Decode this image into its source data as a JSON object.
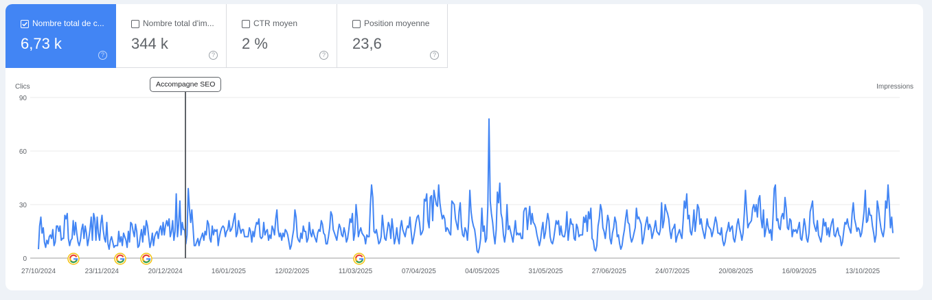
{
  "metrics": [
    {
      "label": "Nombre total de c...",
      "value": "6,73 k",
      "checked": true,
      "help_icon": "question-circle-icon"
    },
    {
      "label": "Nombre total d'im...",
      "value": "344 k",
      "checked": false,
      "help_icon": "question-circle-icon"
    },
    {
      "label": "CTR moyen",
      "value": "2 %",
      "checked": false,
      "help_icon": "question-circle-icon"
    },
    {
      "label": "Position moyenne",
      "value": "23,6",
      "checked": false,
      "help_icon": "question-circle-icon"
    }
  ],
  "help_glyph": "?",
  "colors": {
    "accent": "#4285f4",
    "line": "#4285f4",
    "annotation_line": "#5f6368",
    "grid": "#ebebeb",
    "axis": "#9e9e9e"
  },
  "annotation": {
    "label": "Accompagne SEO",
    "date_index": 63
  },
  "google_update_markers": {
    "icon": "google-g-icon",
    "positions_x": [
      107,
      175,
      213,
      523
    ]
  },
  "chart_data": {
    "type": "line",
    "title": "",
    "ylabel": "Clics",
    "ylabel_right": "Impressions",
    "xlabel": "",
    "ylim": [
      0,
      90
    ],
    "yticks": [
      "0",
      "30",
      "60",
      "90"
    ],
    "grid": true,
    "legend": "none",
    "x_tick_labels": [
      "27/10/2024",
      "23/11/2024",
      "20/12/2024",
      "16/01/2025",
      "12/02/2025",
      "11/03/2025",
      "07/04/2025",
      "04/05/2025",
      "31/05/2025",
      "27/06/2025",
      "24/07/2025",
      "20/08/2025",
      "16/09/2025",
      "13/10/2025"
    ],
    "x_range": [
      "27/10/2024",
      "30/10/2025"
    ],
    "series": [
      {
        "name": "Clics",
        "values": [
          5,
          18,
          23,
          14,
          17,
          9,
          6,
          10,
          8,
          12,
          13,
          11,
          16,
          7,
          9,
          18,
          18,
          15,
          18,
          10,
          11,
          11,
          24,
          22,
          25,
          11,
          7,
          10,
          11,
          21,
          13,
          20,
          14,
          9,
          7,
          10,
          16,
          19,
          11,
          18,
          14,
          7,
          11,
          16,
          23,
          10,
          25,
          22,
          10,
          23,
          14,
          10,
          19,
          24,
          16,
          11,
          9,
          20,
          8,
          5,
          10,
          12,
          9,
          6,
          7,
          7,
          7,
          15,
          9,
          12,
          7,
          14,
          12,
          10,
          6,
          15,
          9,
          20,
          19,
          15,
          12,
          19,
          15,
          6,
          7,
          12,
          16,
          9,
          18,
          13,
          21,
          18,
          12,
          6,
          9,
          14,
          7,
          12,
          14,
          15,
          11,
          16,
          18,
          13,
          20,
          13,
          18,
          21,
          18,
          22,
          12,
          15,
          21,
          10,
          15,
          36,
          12,
          19,
          32,
          13,
          20,
          16,
          16,
          8,
          13,
          39,
          28,
          20,
          27,
          17,
          7,
          7,
          9,
          11,
          7,
          10,
          12,
          14,
          10,
          15,
          13,
          21,
          19,
          11,
          9,
          18,
          13,
          16,
          15,
          16,
          7,
          12,
          15,
          17,
          18,
          17,
          12,
          15,
          16,
          21,
          15,
          16,
          18,
          22,
          25,
          12,
          14,
          21,
          17,
          14,
          16,
          16,
          12,
          12,
          12,
          12,
          17,
          15,
          9,
          15,
          12,
          17,
          20,
          19,
          22,
          12,
          11,
          12,
          20,
          13,
          15,
          16,
          10,
          13,
          11,
          18,
          16,
          13,
          22,
          27,
          16,
          12,
          14,
          10,
          14,
          12,
          16,
          15,
          13,
          9,
          5,
          7,
          12,
          16,
          27,
          23,
          12,
          10,
          9,
          14,
          11,
          18,
          15,
          15,
          9,
          11,
          20,
          14,
          12,
          16,
          13,
          11,
          9,
          14,
          16,
          15,
          21,
          19,
          14,
          13,
          8,
          8,
          12,
          17,
          26,
          24,
          16,
          14,
          12,
          10,
          15,
          19,
          17,
          13,
          12,
          17,
          14,
          9,
          11,
          16,
          22,
          20,
          25,
          10,
          14,
          30,
          23,
          12,
          15,
          17,
          14,
          13,
          12,
          8,
          13,
          12,
          12,
          30,
          41,
          34,
          15,
          14,
          16,
          12,
          8,
          9,
          12,
          24,
          17,
          11,
          10,
          15,
          20,
          18,
          11,
          22,
          16,
          8,
          11,
          17,
          11,
          8,
          17,
          21,
          16,
          14,
          12,
          16,
          18,
          17,
          23,
          15,
          8,
          11,
          15,
          20,
          23,
          24,
          20,
          13,
          14,
          16,
          33,
          32,
          36,
          21,
          17,
          34,
          35,
          21,
          38,
          34,
          30,
          29,
          41,
          31,
          26,
          22,
          24,
          22,
          15,
          17,
          16,
          14,
          13,
          32,
          31,
          30,
          22,
          19,
          16,
          26,
          31,
          18,
          13,
          12,
          17,
          15,
          10,
          20,
          38,
          26,
          21,
          18,
          16,
          11,
          4,
          3,
          6,
          11,
          28,
          15,
          18,
          9,
          11,
          29,
          78,
          32,
          25,
          20,
          13,
          8,
          16,
          37,
          31,
          42,
          25,
          22,
          13,
          9,
          14,
          30,
          16,
          18,
          15,
          12,
          9,
          15,
          21,
          13,
          14,
          13,
          14,
          11,
          11,
          26,
          28,
          28,
          16,
          23,
          29,
          19,
          25,
          20,
          19,
          17,
          13,
          10,
          7,
          10,
          16,
          20,
          11,
          14,
          20,
          25,
          21,
          12,
          9,
          8,
          11,
          16,
          21,
          19,
          21,
          13,
          18,
          13,
          12,
          12,
          16,
          26,
          10,
          16,
          22,
          19,
          19,
          11,
          10,
          19,
          17,
          12,
          13,
          13,
          13,
          23,
          20,
          24,
          15,
          26,
          22,
          28,
          11,
          10,
          5,
          4,
          7,
          18,
          22,
          30,
          27,
          17,
          15,
          11,
          17,
          24,
          21,
          11,
          8,
          14,
          17,
          23,
          20,
          12,
          13,
          8,
          5,
          7,
          12,
          16,
          22,
          27,
          20,
          19,
          12,
          9,
          11,
          14,
          17,
          28,
          22,
          23,
          21,
          19,
          8,
          11,
          16,
          20,
          23,
          16,
          19,
          17,
          11,
          14,
          17,
          21,
          15,
          14,
          13,
          16,
          31,
          17,
          21,
          30,
          27,
          25,
          22,
          15,
          11,
          16,
          17,
          19,
          9,
          12,
          14,
          16,
          13,
          11,
          21,
          32,
          28,
          36,
          22,
          24,
          15,
          13,
          18,
          27,
          15,
          22,
          30,
          28,
          19,
          22,
          17,
          14,
          11,
          16,
          22,
          18,
          17,
          16,
          12,
          15,
          19,
          23,
          20,
          14,
          14,
          13,
          17,
          10,
          7,
          9,
          14,
          16,
          20,
          15,
          17,
          18,
          11,
          9,
          13,
          19,
          22,
          17,
          14,
          10,
          14,
          25,
          38,
          27,
          17,
          19,
          20,
          21,
          28,
          30,
          26,
          30,
          23,
          33,
          35,
          22,
          17,
          27,
          12,
          16,
          22,
          17,
          14,
          16,
          10,
          23,
          39,
          41,
          21,
          22,
          17,
          16,
          23,
          25,
          22,
          34,
          28,
          17,
          16,
          22,
          21,
          12,
          16,
          15,
          16,
          14,
          17,
          20,
          11,
          10,
          15,
          22,
          18,
          11,
          9,
          14,
          26,
          29,
          32,
          20,
          17,
          15,
          21,
          13,
          11,
          9,
          14,
          22,
          18,
          20,
          13,
          17,
          12,
          17,
          20,
          22,
          13,
          12,
          15,
          17,
          13,
          12,
          7,
          9,
          15,
          20,
          19,
          22,
          18,
          16,
          14,
          25,
          31,
          22,
          19,
          15,
          17,
          16,
          12,
          14,
          20,
          26,
          38,
          20,
          21,
          28,
          24,
          24,
          18,
          14,
          9,
          13,
          32,
          28,
          22,
          17,
          14,
          12,
          17,
          32,
          28,
          41,
          30,
          17,
          23,
          14
        ]
      }
    ]
  }
}
